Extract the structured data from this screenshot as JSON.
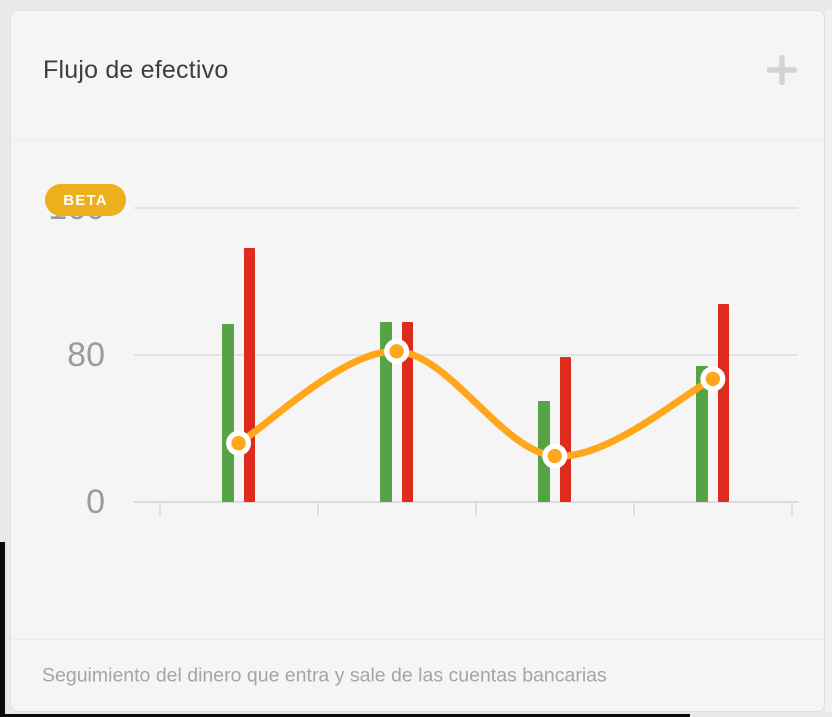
{
  "page": {
    "background": "#e9e9e9"
  },
  "card": {
    "title": "Flujo de efectivo",
    "beta_badge": "BETA",
    "footer_text": "Seguimiento del dinero que entra y sale de las cuentas bancarias"
  },
  "icons": {
    "add": "plus-icon"
  },
  "colors": {
    "badge": "#ecb01c",
    "green": "#55a345",
    "red": "#df2b1e",
    "orange": "#ffa71c",
    "grid": "#e4e4e7",
    "axis_text": "#9b9b9b",
    "plus_icon": "#d3d3d3"
  },
  "chart_data": {
    "type": "bar+line",
    "title": "Flujo de efectivo",
    "x_labels": [
      "",
      "",
      "",
      ""
    ],
    "y_ticks": [
      0,
      80,
      160
    ],
    "ylim": [
      0,
      160
    ],
    "grid": true,
    "legend": false,
    "series": [
      {
        "name": "green-bars",
        "type": "bar",
        "color": "#55a345",
        "values": [
          97,
          98,
          55,
          74
        ]
      },
      {
        "name": "red-bars",
        "type": "bar",
        "color": "#df2b1e",
        "values": [
          138,
          98,
          79,
          108
        ]
      },
      {
        "name": "orange-line",
        "type": "line",
        "color": "#ffa71c",
        "values": [
          32,
          82,
          25,
          67
        ]
      }
    ]
  }
}
